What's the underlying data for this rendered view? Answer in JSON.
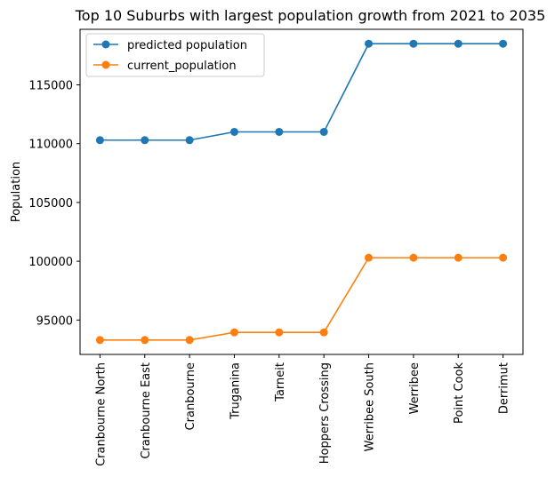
{
  "chart_data": {
    "type": "line",
    "title": "Top 10 Suburbs with largest population growth from 2021 to 2035",
    "xlabel": "",
    "ylabel": "Population",
    "categories": [
      "Cranbourne North",
      "Cranbourne East",
      "Cranbourne",
      "Truganina",
      "Tarneit",
      "Hoppers Crossing",
      "Werribee South",
      "Werribee",
      "Point Cook",
      "Derrimut"
    ],
    "series": [
      {
        "name": "predicted population",
        "color": "#1f77b4",
        "values": [
          110300,
          110300,
          110300,
          111000,
          111000,
          111000,
          118500,
          118500,
          118500,
          118500
        ]
      },
      {
        "name": "current_population",
        "color": "#ff7f0e",
        "values": [
          93300,
          93300,
          93300,
          93950,
          93950,
          93950,
          100300,
          100300,
          100300,
          100300
        ]
      }
    ],
    "ylim": [
      92075,
      119725
    ],
    "yticks": [
      "95000",
      "100000",
      "105000",
      "110000",
      "115000"
    ],
    "legend": "top-left",
    "grid": false
  }
}
